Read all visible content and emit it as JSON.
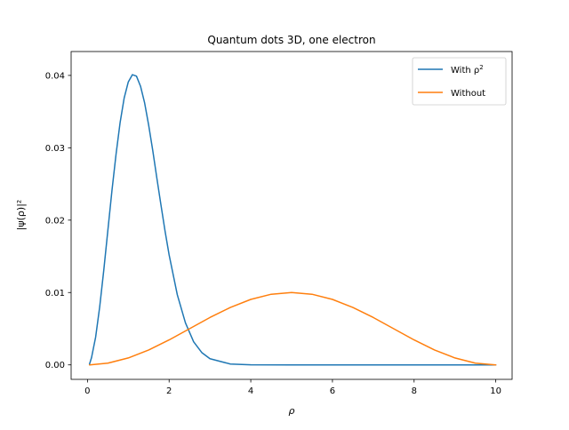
{
  "chart_data": {
    "type": "line",
    "title": "Quantum dots 3D, one electron",
    "xlabel": "ρ",
    "ylabel": "|ψ(ρ)|²",
    "xlim": [
      -0.4,
      10.4
    ],
    "ylim": [
      -0.002,
      0.0433
    ],
    "x_ticks": [
      0,
      2,
      4,
      6,
      8,
      10
    ],
    "x_tick_labels": [
      "0",
      "2",
      "4",
      "6",
      "8",
      "10"
    ],
    "y_ticks": [
      0.0,
      0.01,
      0.02,
      0.03,
      0.04
    ],
    "y_tick_labels": [
      "0.00",
      "0.01",
      "0.02",
      "0.03",
      "0.04"
    ],
    "grid": false,
    "legend_position": "top-right",
    "series": [
      {
        "name": "With ρ",
        "name_superscript": "2",
        "color": "#1f77b4",
        "x": [
          0.05,
          0.1,
          0.2,
          0.3,
          0.4,
          0.5,
          0.6,
          0.7,
          0.8,
          0.9,
          1.0,
          1.1,
          1.2,
          1.3,
          1.4,
          1.5,
          1.6,
          1.7,
          1.8,
          1.9,
          2.0,
          2.2,
          2.4,
          2.6,
          2.8,
          3.0,
          3.5,
          4.0,
          5.0,
          6.0,
          7.0,
          8.0,
          9.0,
          10.0
        ],
        "y": [
          0.0001,
          0.00101,
          0.00383,
          0.00803,
          0.0131,
          0.0186,
          0.0241,
          0.0291,
          0.0335,
          0.0369,
          0.0391,
          0.0401,
          0.0399,
          0.0385,
          0.0362,
          0.0331,
          0.0296,
          0.0258,
          0.0221,
          0.0185,
          0.0152,
          0.0097,
          0.0058,
          0.0032,
          0.0017,
          0.00085,
          0.00012,
          1e-05,
          0.0,
          0.0,
          0.0,
          0.0,
          0.0,
          0.0
        ]
      },
      {
        "name": "Without",
        "color": "#ff7f0e",
        "x": [
          0.05,
          0.5,
          1.0,
          1.5,
          2.0,
          2.5,
          3.0,
          3.5,
          4.0,
          4.5,
          5.0,
          5.5,
          6.0,
          6.5,
          7.0,
          7.5,
          8.0,
          8.5,
          9.0,
          9.5,
          10.0
        ],
        "y": [
          0.0,
          0.00024,
          0.00096,
          0.00206,
          0.00345,
          0.005,
          0.00655,
          0.00794,
          0.00905,
          0.00976,
          0.01,
          0.00976,
          0.00905,
          0.00794,
          0.00655,
          0.005,
          0.00345,
          0.00206,
          0.00096,
          0.00024,
          0.0
        ]
      }
    ]
  }
}
